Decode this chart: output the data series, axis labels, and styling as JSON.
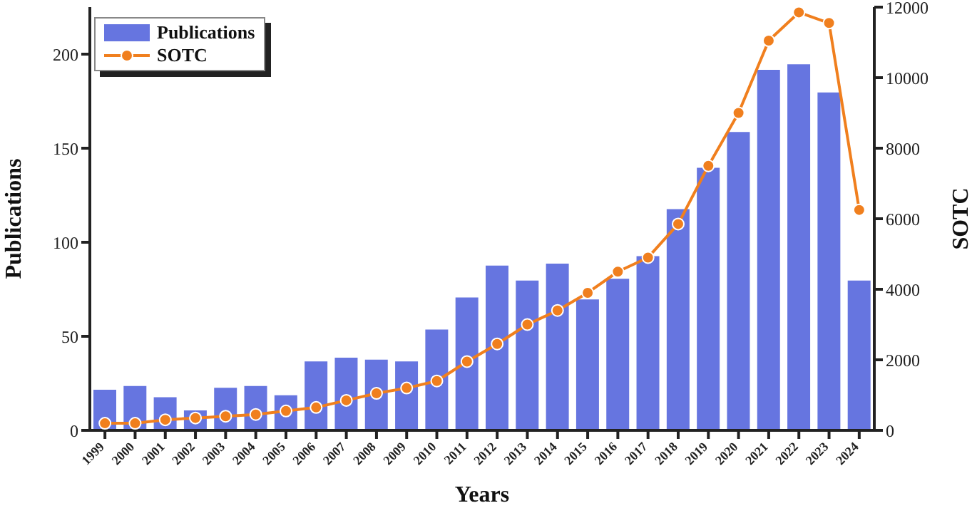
{
  "chart_data": {
    "type": "bar",
    "xlabel": "Years",
    "ylabel": "Publications",
    "y2label": "SOTC",
    "categories": [
      "1999",
      "2000",
      "2001",
      "2002",
      "2003",
      "2004",
      "2005",
      "2006",
      "2007",
      "2008",
      "2009",
      "2010",
      "2011",
      "2012",
      "2013",
      "2014",
      "2015",
      "2016",
      "2017",
      "2018",
      "2019",
      "2020",
      "2021",
      "2022",
      "2023",
      "2024"
    ],
    "series": [
      {
        "name": "Publications",
        "color": "#6675e0",
        "values": [
          22,
          24,
          18,
          11,
          23,
          24,
          19,
          37,
          39,
          38,
          37,
          54,
          71,
          88,
          80,
          89,
          70,
          81,
          93,
          118,
          140,
          159,
          192,
          195,
          180,
          80
        ]
      },
      {
        "name": "SOTC",
        "type": "line",
        "axis": "y2",
        "color": "#f07f1e",
        "values": [
          200,
          200,
          300,
          350,
          400,
          450,
          550,
          650,
          850,
          1050,
          1200,
          1400,
          1950,
          2450,
          3000,
          3400,
          3900,
          4500,
          4900,
          5850,
          7500,
          9000,
          11050,
          11850,
          11550,
          6250
        ]
      }
    ],
    "ylim": [
      0,
      225
    ],
    "yticks": [
      0,
      50,
      100,
      150,
      200
    ],
    "y2lim": [
      0,
      12000
    ],
    "y2ticks": [
      0,
      2000,
      4000,
      6000,
      8000,
      10000,
      12000
    ],
    "grid": false,
    "legend": "top left",
    "marker": "circle",
    "line_style": "solid"
  }
}
